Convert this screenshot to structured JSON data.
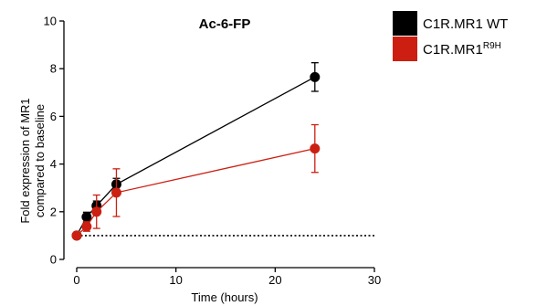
{
  "chart_data": {
    "type": "line",
    "title": "Ac-6-FP",
    "xlabel": "Time (hours)",
    "ylabel_lines": [
      "Fold expression of MR1",
      "compared to baseline"
    ],
    "xlim": [
      0,
      30
    ],
    "ylim": [
      0,
      10
    ],
    "xticks": [
      0,
      10,
      20,
      30
    ],
    "yticks": [
      0,
      2,
      4,
      6,
      8,
      10
    ],
    "grid": false,
    "legend_position": "top-right",
    "baseline": {
      "y": 1,
      "style": "dotted"
    },
    "series": [
      {
        "name": "C1R.MR1 WT",
        "color": "#000000",
        "x": [
          0,
          1,
          2,
          4,
          24
        ],
        "y": [
          1.0,
          1.78,
          2.25,
          3.15,
          7.65
        ],
        "err": [
          0.1,
          0.2,
          0.2,
          0.25,
          0.6
        ]
      },
      {
        "name": "C1R.MR1",
        "name_superscript": "R9H",
        "color": "#cc1f11",
        "x": [
          0,
          1,
          2,
          4,
          24
        ],
        "y": [
          1.0,
          1.38,
          2.0,
          2.8,
          4.65
        ],
        "err": [
          0.1,
          0.2,
          0.7,
          1.0,
          1.0
        ]
      }
    ]
  }
}
